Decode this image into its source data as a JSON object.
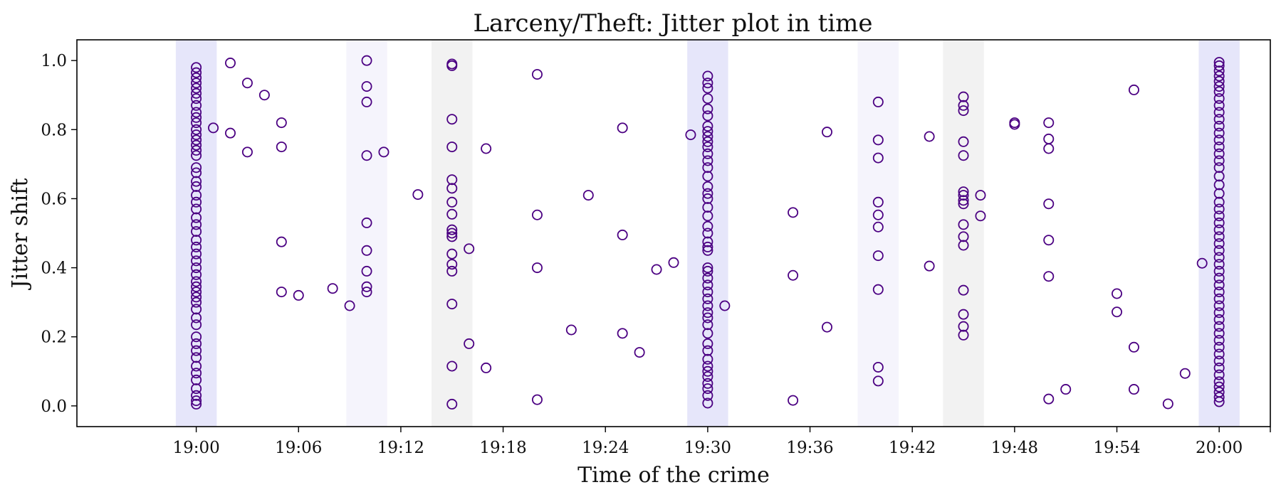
{
  "chart_data": {
    "type": "scatter",
    "title": "Larceny/Theft: Jitter plot in time",
    "xlabel": "Time of the crime",
    "ylabel": "Jitter shift",
    "x_unit": "minutes past 19:00",
    "xlim": [
      -7,
      63
    ],
    "ylim": [
      -0.06,
      1.06
    ],
    "x_ticks": [
      0,
      6,
      12,
      18,
      24,
      30,
      36,
      42,
      48,
      54,
      60
    ],
    "x_tick_labels": [
      "19:00",
      "19:06",
      "19:12",
      "19:18",
      "19:24",
      "19:30",
      "19:36",
      "19:42",
      "19:48",
      "19:54",
      "20:00"
    ],
    "y_ticks": [
      0.0,
      0.2,
      0.4,
      0.6,
      0.8,
      1.0
    ],
    "y_tick_labels": [
      "0.0",
      "0.2",
      "0.4",
      "0.6",
      "0.8",
      "1.0"
    ],
    "grid": false,
    "marker_color": "#4b0082",
    "bands": [
      {
        "x0": -1.2,
        "x1": 1.2,
        "color": "#e6e6fa"
      },
      {
        "x0": 8.8,
        "x1": 11.2,
        "color": "#f5f4fc"
      },
      {
        "x0": 13.8,
        "x1": 16.2,
        "color": "#f2f2f2"
      },
      {
        "x0": 28.8,
        "x1": 31.2,
        "color": "#e6e6fa"
      },
      {
        "x0": 38.8,
        "x1": 41.2,
        "color": "#f5f4fc"
      },
      {
        "x0": 43.8,
        "x1": 46.2,
        "color": "#f2f2f2"
      },
      {
        "x0": 58.8,
        "x1": 61.2,
        "color": "#e6e6fa"
      }
    ],
    "points": [
      [
        0,
        0.98
      ],
      [
        0,
        0.965
      ],
      [
        0,
        0.95
      ],
      [
        0,
        0.935
      ],
      [
        0,
        0.92
      ],
      [
        0,
        0.905
      ],
      [
        0,
        0.89
      ],
      [
        0,
        0.87
      ],
      [
        0,
        0.85
      ],
      [
        0,
        0.835
      ],
      [
        0,
        0.82
      ],
      [
        0,
        0.8
      ],
      [
        0,
        0.785
      ],
      [
        0,
        0.77
      ],
      [
        0,
        0.755
      ],
      [
        0,
        0.74
      ],
      [
        0,
        0.725
      ],
      [
        0,
        0.69
      ],
      [
        0,
        0.675
      ],
      [
        0,
        0.65
      ],
      [
        0,
        0.635
      ],
      [
        0,
        0.61
      ],
      [
        0,
        0.59
      ],
      [
        0,
        0.57
      ],
      [
        0,
        0.545
      ],
      [
        0,
        0.525
      ],
      [
        0,
        0.505
      ],
      [
        0,
        0.48
      ],
      [
        0,
        0.46
      ],
      [
        0,
        0.44
      ],
      [
        0,
        0.42
      ],
      [
        0,
        0.4
      ],
      [
        0,
        0.38
      ],
      [
        0,
        0.36
      ],
      [
        0,
        0.345
      ],
      [
        0,
        0.33
      ],
      [
        0,
        0.315
      ],
      [
        0,
        0.3
      ],
      [
        0,
        0.28
      ],
      [
        0,
        0.255
      ],
      [
        0,
        0.235
      ],
      [
        0,
        0.2
      ],
      [
        0,
        0.18
      ],
      [
        0,
        0.16
      ],
      [
        0,
        0.14
      ],
      [
        0,
        0.115
      ],
      [
        0,
        0.095
      ],
      [
        0,
        0.075
      ],
      [
        0,
        0.05
      ],
      [
        0,
        0.03
      ],
      [
        0,
        0.015
      ],
      [
        0,
        0.005
      ],
      [
        1,
        0.805
      ],
      [
        2,
        0.993
      ],
      [
        2,
        0.79
      ],
      [
        3,
        0.935
      ],
      [
        3,
        0.735
      ],
      [
        4,
        0.9
      ],
      [
        5,
        0.82
      ],
      [
        5,
        0.75
      ],
      [
        5,
        0.475
      ],
      [
        5,
        0.33
      ],
      [
        6,
        0.32
      ],
      [
        8,
        0.34
      ],
      [
        9,
        0.29
      ],
      [
        10,
        1.0
      ],
      [
        10,
        0.925
      ],
      [
        10,
        0.88
      ],
      [
        10,
        0.725
      ],
      [
        10,
        0.53
      ],
      [
        10,
        0.45
      ],
      [
        10,
        0.39
      ],
      [
        10,
        0.345
      ],
      [
        10,
        0.33
      ],
      [
        11,
        0.735
      ],
      [
        13,
        0.612
      ],
      [
        15,
        0.99
      ],
      [
        15,
        0.985
      ],
      [
        15,
        0.83
      ],
      [
        15,
        0.75
      ],
      [
        15,
        0.655
      ],
      [
        15,
        0.63
      ],
      [
        15,
        0.59
      ],
      [
        15,
        0.555
      ],
      [
        15,
        0.51
      ],
      [
        15,
        0.5
      ],
      [
        15,
        0.49
      ],
      [
        15,
        0.44
      ],
      [
        15,
        0.41
      ],
      [
        15,
        0.39
      ],
      [
        15,
        0.295
      ],
      [
        15,
        0.115
      ],
      [
        15,
        0.005
      ],
      [
        16,
        0.455
      ],
      [
        16,
        0.18
      ],
      [
        17,
        0.745
      ],
      [
        17,
        0.11
      ],
      [
        20,
        0.96
      ],
      [
        20,
        0.553
      ],
      [
        20,
        0.4
      ],
      [
        20,
        0.018
      ],
      [
        22,
        0.22
      ],
      [
        23,
        0.61
      ],
      [
        25,
        0.805
      ],
      [
        25,
        0.495
      ],
      [
        25,
        0.21
      ],
      [
        26,
        0.155
      ],
      [
        27,
        0.395
      ],
      [
        28,
        0.415
      ],
      [
        29,
        0.785
      ],
      [
        30,
        0.955
      ],
      [
        30,
        0.935
      ],
      [
        30,
        0.92
      ],
      [
        30,
        0.89
      ],
      [
        30,
        0.86
      ],
      [
        30,
        0.84
      ],
      [
        30,
        0.81
      ],
      [
        30,
        0.795
      ],
      [
        30,
        0.78
      ],
      [
        30,
        0.765
      ],
      [
        30,
        0.75
      ],
      [
        30,
        0.73
      ],
      [
        30,
        0.71
      ],
      [
        30,
        0.69
      ],
      [
        30,
        0.665
      ],
      [
        30,
        0.635
      ],
      [
        30,
        0.615
      ],
      [
        30,
        0.6
      ],
      [
        30,
        0.575
      ],
      [
        30,
        0.55
      ],
      [
        30,
        0.52
      ],
      [
        30,
        0.5
      ],
      [
        30,
        0.475
      ],
      [
        30,
        0.46
      ],
      [
        30,
        0.45
      ],
      [
        30,
        0.4
      ],
      [
        30,
        0.39
      ],
      [
        30,
        0.37
      ],
      [
        30,
        0.35
      ],
      [
        30,
        0.33
      ],
      [
        30,
        0.31
      ],
      [
        30,
        0.29
      ],
      [
        30,
        0.27
      ],
      [
        30,
        0.255
      ],
      [
        30,
        0.235
      ],
      [
        30,
        0.21
      ],
      [
        30,
        0.18
      ],
      [
        30,
        0.16
      ],
      [
        30,
        0.135
      ],
      [
        30,
        0.115
      ],
      [
        30,
        0.1
      ],
      [
        30,
        0.085
      ],
      [
        30,
        0.065
      ],
      [
        30,
        0.05
      ],
      [
        30,
        0.03
      ],
      [
        30,
        0.008
      ],
      [
        31,
        0.29
      ],
      [
        35,
        0.56
      ],
      [
        35,
        0.378
      ],
      [
        35,
        0.016
      ],
      [
        37,
        0.793
      ],
      [
        37,
        0.228
      ],
      [
        40,
        0.88
      ],
      [
        40,
        0.77
      ],
      [
        40,
        0.718
      ],
      [
        40,
        0.59
      ],
      [
        40,
        0.553
      ],
      [
        40,
        0.518
      ],
      [
        40,
        0.435
      ],
      [
        40,
        0.337
      ],
      [
        40,
        0.112
      ],
      [
        40,
        0.072
      ],
      [
        43,
        0.78
      ],
      [
        43,
        0.405
      ],
      [
        45,
        0.895
      ],
      [
        45,
        0.87
      ],
      [
        45,
        0.855
      ],
      [
        45,
        0.765
      ],
      [
        45,
        0.725
      ],
      [
        45,
        0.62
      ],
      [
        45,
        0.61
      ],
      [
        45,
        0.595
      ],
      [
        45,
        0.585
      ],
      [
        45,
        0.525
      ],
      [
        45,
        0.49
      ],
      [
        45,
        0.465
      ],
      [
        45,
        0.335
      ],
      [
        45,
        0.265
      ],
      [
        45,
        0.23
      ],
      [
        45,
        0.205
      ],
      [
        46,
        0.61
      ],
      [
        46,
        0.55
      ],
      [
        48,
        0.82
      ],
      [
        48,
        0.815
      ],
      [
        50,
        0.82
      ],
      [
        50,
        0.773
      ],
      [
        50,
        0.745
      ],
      [
        50,
        0.585
      ],
      [
        50,
        0.48
      ],
      [
        50,
        0.375
      ],
      [
        50,
        0.02
      ],
      [
        51,
        0.048
      ],
      [
        54,
        0.325
      ],
      [
        54,
        0.272
      ],
      [
        55,
        0.915
      ],
      [
        55,
        0.17
      ],
      [
        55,
        0.048
      ],
      [
        57,
        0.006
      ],
      [
        58,
        0.094
      ],
      [
        59,
        0.413
      ],
      [
        60,
        0.995
      ],
      [
        60,
        0.985
      ],
      [
        60,
        0.97
      ],
      [
        60,
        0.955
      ],
      [
        60,
        0.94
      ],
      [
        60,
        0.925
      ],
      [
        60,
        0.91
      ],
      [
        60,
        0.89
      ],
      [
        60,
        0.87
      ],
      [
        60,
        0.85
      ],
      [
        60,
        0.83
      ],
      [
        60,
        0.81
      ],
      [
        60,
        0.79
      ],
      [
        60,
        0.77
      ],
      [
        60,
        0.75
      ],
      [
        60,
        0.73
      ],
      [
        60,
        0.71
      ],
      [
        60,
        0.69
      ],
      [
        60,
        0.665
      ],
      [
        60,
        0.64
      ],
      [
        60,
        0.615
      ],
      [
        60,
        0.59
      ],
      [
        60,
        0.57
      ],
      [
        60,
        0.55
      ],
      [
        60,
        0.53
      ],
      [
        60,
        0.51
      ],
      [
        60,
        0.49
      ],
      [
        60,
        0.47
      ],
      [
        60,
        0.45
      ],
      [
        60,
        0.43
      ],
      [
        60,
        0.41
      ],
      [
        60,
        0.39
      ],
      [
        60,
        0.37
      ],
      [
        60,
        0.35
      ],
      [
        60,
        0.33
      ],
      [
        60,
        0.31
      ],
      [
        60,
        0.29
      ],
      [
        60,
        0.27
      ],
      [
        60,
        0.25
      ],
      [
        60,
        0.23
      ],
      [
        60,
        0.21
      ],
      [
        60,
        0.19
      ],
      [
        60,
        0.17
      ],
      [
        60,
        0.15
      ],
      [
        60,
        0.13
      ],
      [
        60,
        0.11
      ],
      [
        60,
        0.09
      ],
      [
        60,
        0.07
      ],
      [
        60,
        0.055
      ],
      [
        60,
        0.04
      ],
      [
        60,
        0.025
      ],
      [
        60,
        0.012
      ]
    ]
  }
}
